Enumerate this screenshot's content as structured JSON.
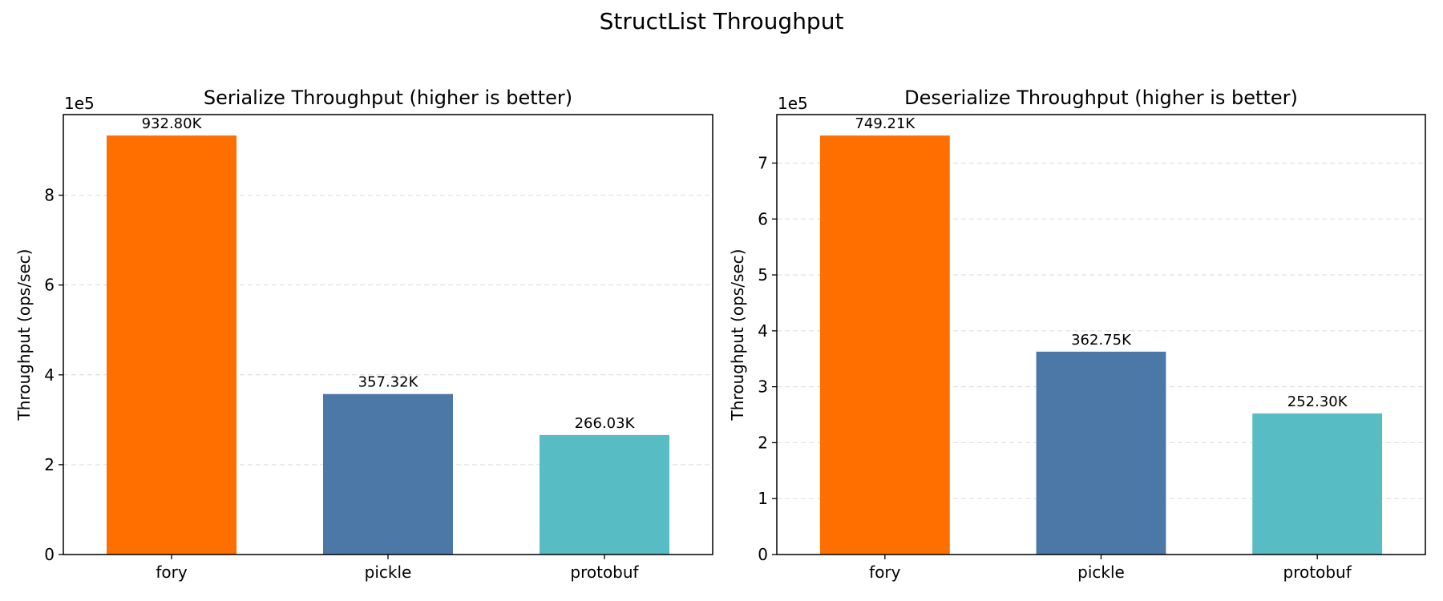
{
  "figure_title": "StructList Throughput",
  "chart_data": [
    {
      "type": "bar",
      "title": "Serialize Throughput (higher is better)",
      "xlabel": "",
      "ylabel": "Throughput (ops/sec)",
      "y_offset_label": "1e5",
      "categories": [
        "fory",
        "pickle",
        "protobuf"
      ],
      "values": [
        932800,
        357320,
        266030
      ],
      "data_labels": [
        "932.80K",
        "357.32K",
        "266.03K"
      ],
      "colors": [
        "#ff6f00",
        "#4c78a8",
        "#57bcc3"
      ],
      "ylim": [
        0,
        979440
      ],
      "yticks": [
        0,
        200000,
        400000,
        600000,
        800000
      ],
      "ytick_labels": [
        "0",
        "2",
        "4",
        "6",
        "8"
      ],
      "grid": "y, dashed",
      "legend": "none"
    },
    {
      "type": "bar",
      "title": "Deserialize Throughput (higher is better)",
      "xlabel": "",
      "ylabel": "Throughput (ops/sec)",
      "y_offset_label": "1e5",
      "categories": [
        "fory",
        "pickle",
        "protobuf"
      ],
      "values": [
        749210,
        362750,
        252300
      ],
      "data_labels": [
        "749.21K",
        "362.75K",
        "252.30K"
      ],
      "colors": [
        "#ff6f00",
        "#4c78a8",
        "#57bcc3"
      ],
      "ylim": [
        0,
        786670
      ],
      "yticks": [
        0,
        100000,
        200000,
        300000,
        400000,
        500000,
        600000,
        700000
      ],
      "ytick_labels": [
        "0",
        "1",
        "2",
        "3",
        "4",
        "5",
        "6",
        "7"
      ],
      "grid": "y, dashed",
      "legend": "none"
    }
  ]
}
